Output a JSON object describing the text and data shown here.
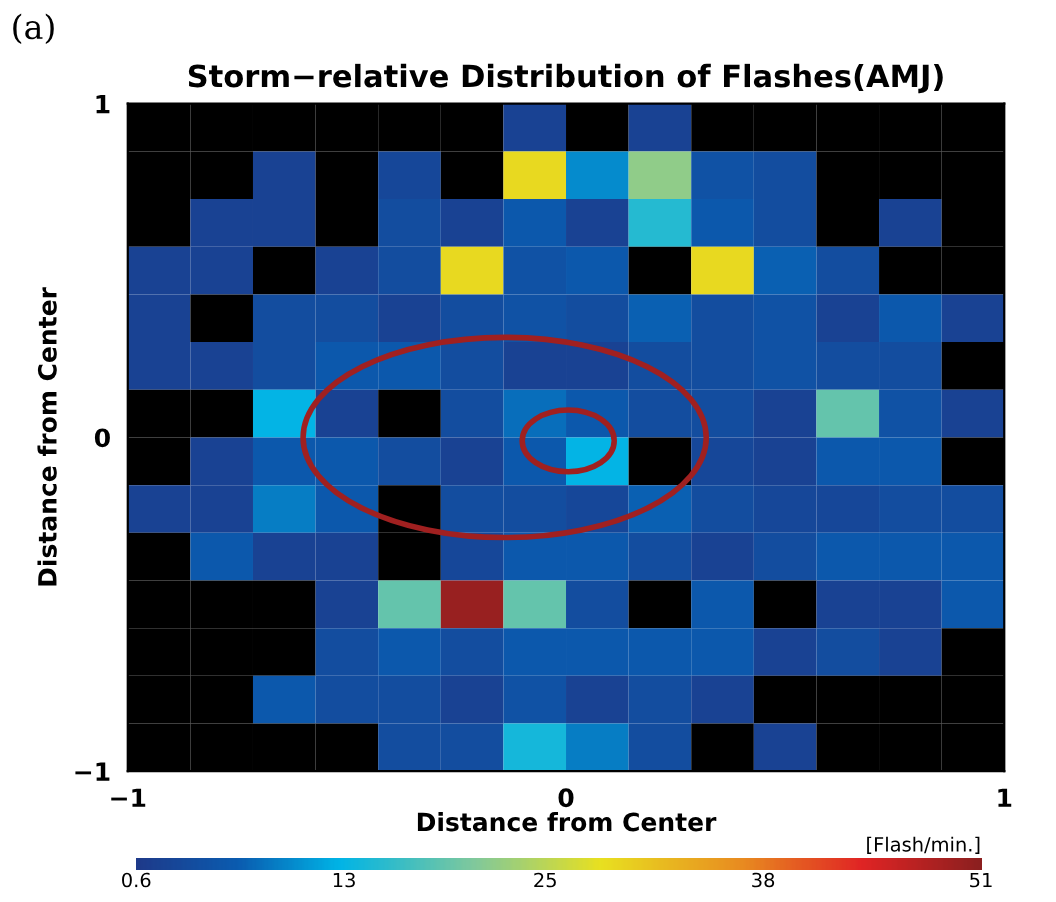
{
  "chart_data": {
    "type": "heatmap",
    "title": "Storm−relative Distribution of Flashes(AMJ)",
    "xlabel": "Distance from Center",
    "ylabel": "Distance from Center",
    "clabel": "[Flash/min.]",
    "annotations": [
      "(a)"
    ],
    "xlim": [
      -1,
      1
    ],
    "ylim": [
      -1,
      1
    ],
    "xticks": [
      {
        "value": -1,
        "label": "−1"
      },
      0,
      1
    ],
    "yticks": [
      {
        "value": -1,
        "label": "−1"
      },
      0,
      1
    ],
    "clim": [
      0.6,
      51
    ],
    "cticks": [
      0.6,
      13,
      25,
      38,
      51
    ],
    "cells": [
      [
        null,
        null,
        null,
        null,
        null,
        null,
        2,
        null,
        2,
        null,
        null,
        null,
        null,
        null
      ],
      [
        null,
        null,
        2,
        null,
        3,
        null,
        29,
        10,
        22,
        5,
        4,
        null,
        null,
        null
      ],
      [
        null,
        2,
        2,
        null,
        4,
        2,
        6,
        2,
        15,
        6,
        4,
        null,
        2,
        null
      ],
      [
        2,
        2,
        null,
        2,
        4,
        29,
        5,
        6,
        null,
        29,
        7,
        4,
        null,
        null
      ],
      [
        2,
        null,
        4,
        4,
        2,
        4,
        5,
        4,
        7,
        4,
        5,
        2,
        6,
        2
      ],
      [
        2,
        2,
        4,
        6,
        6,
        4,
        2,
        2,
        4,
        4,
        5,
        4,
        4,
        null
      ],
      [
        null,
        null,
        13,
        2,
        null,
        4,
        8,
        6,
        4,
        4,
        2,
        19,
        5,
        2
      ],
      [
        null,
        2,
        6,
        6,
        4,
        2,
        6,
        13,
        null,
        3,
        2,
        6,
        6,
        null
      ],
      [
        2,
        2,
        9,
        6,
        null,
        4,
        4,
        3,
        7,
        4,
        3,
        3,
        4,
        4
      ],
      [
        null,
        6,
        2,
        2,
        null,
        3,
        6,
        6,
        4,
        2,
        4,
        6,
        6,
        6
      ],
      [
        null,
        null,
        null,
        2,
        19,
        50,
        19,
        4,
        null,
        6,
        null,
        2,
        2,
        6
      ],
      [
        null,
        null,
        null,
        4,
        6,
        4,
        6,
        6,
        6,
        6,
        2,
        4,
        2,
        null
      ],
      [
        null,
        null,
        6,
        4,
        4,
        2,
        5,
        2,
        4,
        2,
        null,
        null,
        null,
        null
      ],
      [
        null,
        null,
        null,
        null,
        4,
        4,
        14,
        9,
        4,
        null,
        2,
        null,
        null,
        null
      ]
    ]
  }
}
